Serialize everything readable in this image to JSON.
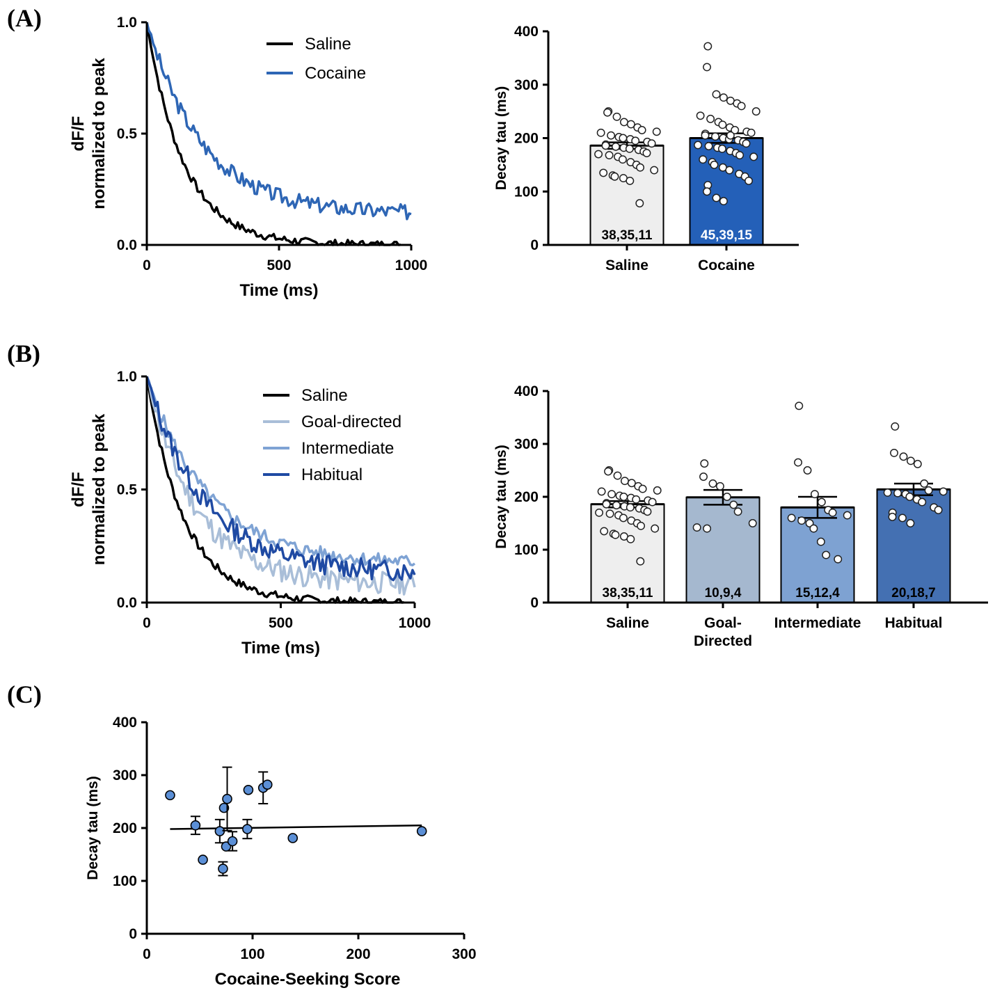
{
  "panels": {
    "A": {
      "label": "(A)"
    },
    "B": {
      "label": "(B)"
    },
    "C": {
      "label": "(C)"
    }
  },
  "colors": {
    "saline": "#000000",
    "cocaine": "#2e66b5",
    "goal_directed": "#a9bed8",
    "intermediate": "#7fa3d4",
    "habitual": "#1f4aa3",
    "bar_saline": "#eeeeee",
    "bar_cocaine": "#2460b8",
    "bar_goal": "#a5b8cf",
    "bar_intermediate": "#7ea2d2",
    "bar_habitual": "#4470b2",
    "scatter": "#5b8fd6"
  },
  "chart_data": [
    {
      "id": "A-trace",
      "type": "line",
      "panel": "A",
      "xlabel": "Time (ms)",
      "ylabel": "dF/F",
      "ylabel2": "normalized to peak",
      "xlim": [
        0,
        1000
      ],
      "ylim": [
        0,
        1
      ],
      "xticks": [
        "0",
        "500",
        "1000"
      ],
      "yticks": [
        "0.0",
        "0.5",
        "1.0"
      ],
      "legend_position": "top-right",
      "series": [
        {
          "name": "Saline",
          "color_key": "saline",
          "tau": 140,
          "noise": 0.018,
          "seed": 7,
          "xmax": 960
        },
        {
          "name": "Cocaine",
          "color_key": "cocaine",
          "tau": 210,
          "plateau": 0.14,
          "noise": 0.035,
          "seed": 3,
          "xmax": 1000
        }
      ]
    },
    {
      "id": "A-bar",
      "type": "bar",
      "panel": "A",
      "ylabel": "Decay tau (ms)",
      "ylim": [
        0,
        400
      ],
      "yticks": [
        "0",
        "100",
        "200",
        "300",
        "400"
      ],
      "categories": [
        "Saline",
        "Cocaine"
      ],
      "values": [
        186,
        200
      ],
      "sem": [
        6,
        9
      ],
      "n_labels": [
        "38,35,11",
        "45,39,15"
      ],
      "bar_color_keys": [
        "bar_saline",
        "bar_cocaine"
      ],
      "n_label_colors": [
        "#000000",
        "#ffffff"
      ],
      "points": [
        [
          250,
          248,
          240,
          230,
          226,
          220,
          215,
          212,
          210,
          205,
          202,
          200,
          198,
          195,
          193,
          190,
          188,
          186,
          184,
          182,
          180,
          178,
          175,
          172,
          170,
          168,
          165,
          160,
          155,
          150,
          145,
          140,
          135,
          130,
          128,
          125,
          120,
          78
        ],
        [
          372,
          333,
          282,
          276,
          270,
          265,
          260,
          250,
          242,
          236,
          230,
          225,
          220,
          215,
          212,
          210,
          208,
          205,
          203,
          200,
          198,
          196,
          193,
          190,
          187,
          185,
          182,
          180,
          176,
          172,
          168,
          165,
          160,
          155,
          150,
          145,
          140,
          133,
          128,
          120,
          112,
          100,
          88,
          82,
          205
        ]
      ]
    },
    {
      "id": "B-trace",
      "type": "line",
      "panel": "B",
      "xlabel": "Time (ms)",
      "ylabel": "dF/F",
      "ylabel2": "normalized to peak",
      "xlim": [
        0,
        1000
      ],
      "ylim": [
        0,
        1
      ],
      "xticks": [
        "0",
        "500",
        "1000"
      ],
      "yticks": [
        "0.0",
        "0.5",
        "1.0"
      ],
      "legend_position": "top-right",
      "series": [
        {
          "name": "Saline",
          "color_key": "saline",
          "tau": 140,
          "noise": 0.018,
          "seed": 7,
          "xmax": 960
        },
        {
          "name": "Goal-directed",
          "color_key": "goal_directed",
          "tau": 185,
          "plateau": 0.08,
          "noise": 0.05,
          "seed": 11,
          "xmax": 1000
        },
        {
          "name": "Intermediate",
          "color_key": "intermediate",
          "tau": 230,
          "plateau": 0.17,
          "noise": 0.03,
          "seed": 5,
          "xmax": 1000
        },
        {
          "name": "Habitual",
          "color_key": "habitual",
          "tau": 215,
          "plateau": 0.13,
          "noise": 0.045,
          "seed": 13,
          "xmax": 1000
        }
      ]
    },
    {
      "id": "B-bar",
      "type": "bar",
      "panel": "B",
      "ylabel": "Decay tau (ms)",
      "ylim": [
        0,
        400
      ],
      "yticks": [
        "0",
        "100",
        "200",
        "300",
        "400"
      ],
      "categories": [
        "Saline",
        "Goal-\nDirected",
        "Intermediate",
        "Habitual"
      ],
      "values": [
        186,
        199,
        180,
        214
      ],
      "sem": [
        6,
        14,
        20,
        11
      ],
      "n_labels": [
        "38,35,11",
        "10,9,4",
        "15,12,4",
        "20,18,7"
      ],
      "bar_color_keys": [
        "bar_saline",
        "bar_goal",
        "bar_intermediate",
        "bar_habitual"
      ],
      "n_label_colors": [
        "#000000",
        "#000000",
        "#000000",
        "#000000"
      ],
      "points": [
        [
          250,
          248,
          240,
          230,
          226,
          220,
          215,
          212,
          210,
          205,
          202,
          200,
          198,
          195,
          193,
          190,
          188,
          186,
          184,
          182,
          180,
          178,
          175,
          172,
          170,
          168,
          165,
          160,
          155,
          150,
          145,
          140,
          135,
          130,
          128,
          125,
          120,
          78
        ],
        [
          263,
          238,
          225,
          220,
          200,
          185,
          172,
          150,
          142,
          140
        ],
        [
          372,
          265,
          250,
          205,
          190,
          175,
          170,
          165,
          160,
          155,
          150,
          140,
          115,
          90,
          82
        ],
        [
          333,
          283,
          276,
          268,
          262,
          225,
          212,
          210,
          208,
          207,
          205,
          200,
          195,
          190,
          180,
          175,
          170,
          162,
          160,
          150
        ]
      ]
    },
    {
      "id": "C-scatter",
      "type": "scatter",
      "panel": "C",
      "xlabel": "Cocaine-Seeking Score",
      "ylabel": "Decay tau (ms)",
      "xlim": [
        0,
        300
      ],
      "ylim": [
        0,
        400
      ],
      "xticks": [
        "0",
        "100",
        "200",
        "300"
      ],
      "yticks": [
        "0",
        "100",
        "200",
        "300",
        "400"
      ],
      "points": [
        {
          "x": 22,
          "y": 262
        },
        {
          "x": 46,
          "y": 205,
          "err": 17
        },
        {
          "x": 53,
          "y": 140
        },
        {
          "x": 69,
          "y": 194,
          "err": 22
        },
        {
          "x": 72,
          "y": 123,
          "err": 13
        },
        {
          "x": 73,
          "y": 238
        },
        {
          "x": 75,
          "y": 165
        },
        {
          "x": 76,
          "y": 255,
          "err": 60
        },
        {
          "x": 81,
          "y": 175,
          "err": 18
        },
        {
          "x": 95,
          "y": 198,
          "err": 18
        },
        {
          "x": 96,
          "y": 272
        },
        {
          "x": 110,
          "y": 276,
          "err": 30
        },
        {
          "x": 114,
          "y": 282
        },
        {
          "x": 138,
          "y": 181
        },
        {
          "x": 260,
          "y": 194
        }
      ],
      "regression": {
        "x0": 22,
        "y0": 198,
        "x1": 260,
        "y1": 205
      }
    }
  ]
}
